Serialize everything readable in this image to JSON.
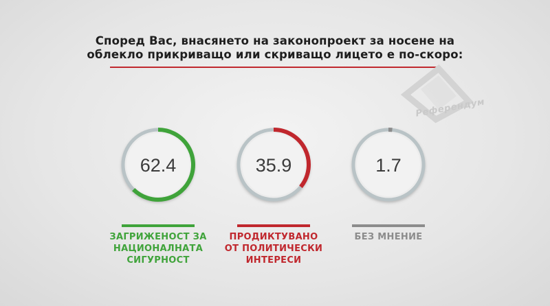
{
  "title_line1": "Според Вас, внасянето на законопроект за носене на",
  "title_line2": "облекло прикриващо или скриващо лицето е по-скоро:",
  "logo_text": "Референдум",
  "colors": {
    "green": "#3fa33a",
    "red": "#c0272d",
    "gray": "#8c8c8c",
    "track": "#b9c3c6",
    "title_rule": "#c0272d"
  },
  "chart_data": {
    "type": "pie",
    "unit": "%",
    "items": [
      {
        "value": 62.4,
        "value_label": "62.4",
        "label_lines": [
          "ЗАГРИЖЕНОСТ ЗА",
          "НАЦИОНАЛНАТА",
          "СИГУРНОСТ"
        ],
        "color": "#3fa33a"
      },
      {
        "value": 35.9,
        "value_label": "35.9",
        "label_lines": [
          "ПРОДИКТУВАНО",
          "ОТ ПОЛИТИЧЕСКИ",
          "ИНТЕРЕСИ"
        ],
        "color": "#c0272d"
      },
      {
        "value": 1.7,
        "value_label": "1.7",
        "label_lines": [
          "БЕЗ МНЕНИЕ"
        ],
        "color": "#8c8c8c"
      }
    ]
  }
}
